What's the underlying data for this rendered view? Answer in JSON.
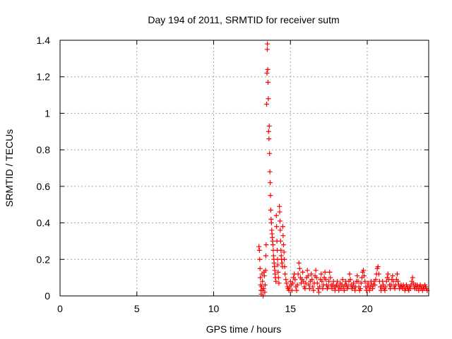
{
  "chart_data": {
    "type": "scatter",
    "title": "Day 194 of 2011, SRMTID for receiver sutm",
    "xlabel": "GPS time / hours",
    "ylabel": "SRMTID / TECUs",
    "xlim": [
      0,
      24
    ],
    "ylim": [
      0,
      1.4
    ],
    "x_ticks": [
      0,
      5,
      10,
      15,
      20
    ],
    "x_tick_labels": [
      "0",
      "5",
      "10",
      "15",
      "20"
    ],
    "y_ticks": [
      0,
      0.2,
      0.4,
      0.6,
      0.8,
      1.0,
      1.2,
      1.4
    ],
    "y_tick_labels": [
      "0",
      "0.2",
      "0.4",
      "0.6",
      "0.8",
      "1",
      "1.2",
      "1.4"
    ],
    "grid": true,
    "marker": "+",
    "series": [
      {
        "name": "SRMTID",
        "color": "#ff0000",
        "points": [
          [
            12.95,
            0.27
          ],
          [
            12.98,
            0.25
          ],
          [
            13.0,
            0.2
          ],
          [
            13.02,
            0.15
          ],
          [
            13.04,
            0.1
          ],
          [
            13.06,
            0.06
          ],
          [
            13.08,
            0.03
          ],
          [
            13.1,
            0.01
          ],
          [
            13.12,
            0.05
          ],
          [
            13.15,
            0.12
          ],
          [
            13.18,
            0.08
          ],
          [
            13.2,
            0.03
          ],
          [
            13.22,
            0.0
          ],
          [
            13.25,
            0.04
          ],
          [
            13.28,
            0.13
          ],
          [
            13.3,
            0.11
          ],
          [
            13.33,
            0.02
          ],
          [
            13.35,
            0.06
          ],
          [
            13.38,
            0.14
          ],
          [
            13.4,
            0.22
          ],
          [
            13.42,
            0.28
          ],
          [
            13.45,
            1.05
          ],
          [
            13.47,
            1.22
          ],
          [
            13.49,
            1.35
          ],
          [
            13.5,
            1.38
          ],
          [
            13.52,
            1.24
          ],
          [
            13.54,
            1.17
          ],
          [
            13.56,
            1.08
          ],
          [
            13.58,
            0.9
          ],
          [
            13.6,
            0.86
          ],
          [
            13.62,
            0.93
          ],
          [
            13.64,
            0.78
          ],
          [
            13.66,
            0.68
          ],
          [
            13.68,
            0.62
          ],
          [
            13.7,
            0.55
          ],
          [
            13.72,
            0.47
          ],
          [
            13.74,
            0.42
          ],
          [
            13.76,
            0.4
          ],
          [
            13.78,
            0.36
          ],
          [
            13.8,
            0.34
          ],
          [
            13.82,
            0.32
          ],
          [
            13.84,
            0.3
          ],
          [
            13.86,
            0.28
          ],
          [
            13.88,
            0.25
          ],
          [
            13.9,
            0.22
          ],
          [
            13.92,
            0.2
          ],
          [
            13.94,
            0.18
          ],
          [
            13.96,
            0.16
          ],
          [
            13.98,
            0.14
          ],
          [
            14.0,
            0.12
          ],
          [
            14.02,
            0.1
          ],
          [
            14.05,
            0.08
          ],
          [
            14.08,
            0.44
          ],
          [
            14.1,
            0.38
          ],
          [
            14.12,
            0.3
          ],
          [
            14.14,
            0.25
          ],
          [
            14.16,
            0.2
          ],
          [
            14.18,
            0.17
          ],
          [
            14.2,
            0.13
          ],
          [
            14.22,
            0.1
          ],
          [
            14.25,
            0.07
          ],
          [
            14.28,
            0.49
          ],
          [
            14.3,
            0.46
          ],
          [
            14.32,
            0.41
          ],
          [
            14.34,
            0.36
          ],
          [
            14.36,
            0.3
          ],
          [
            14.38,
            0.25
          ],
          [
            14.4,
            0.22
          ],
          [
            14.42,
            0.2
          ],
          [
            14.45,
            0.18
          ],
          [
            14.48,
            0.16
          ],
          [
            14.5,
            0.38
          ],
          [
            14.52,
            0.33
          ],
          [
            14.55,
            0.28
          ],
          [
            14.58,
            0.24
          ],
          [
            14.6,
            0.2
          ],
          [
            14.62,
            0.16
          ],
          [
            14.65,
            0.12
          ],
          [
            14.7,
            0.09
          ],
          [
            14.75,
            0.07
          ],
          [
            14.8,
            0.05
          ],
          [
            14.85,
            0.04
          ],
          [
            14.9,
            0.03
          ],
          [
            14.95,
            0.05
          ],
          [
            15.0,
            0.08
          ],
          [
            15.05,
            0.06
          ],
          [
            15.1,
            0.03
          ],
          [
            15.15,
            0.07
          ],
          [
            15.2,
            0.1
          ],
          [
            15.25,
            0.12
          ],
          [
            15.3,
            0.09
          ],
          [
            15.35,
            0.05
          ],
          [
            15.4,
            0.03
          ],
          [
            15.45,
            0.06
          ],
          [
            15.5,
            0.12
          ],
          [
            15.55,
            0.18
          ],
          [
            15.6,
            0.15
          ],
          [
            15.65,
            0.1
          ],
          [
            15.7,
            0.07
          ],
          [
            15.75,
            0.09
          ],
          [
            15.8,
            0.13
          ],
          [
            15.85,
            0.08
          ],
          [
            15.9,
            0.05
          ],
          [
            15.95,
            0.04
          ],
          [
            16.0,
            0.07
          ],
          [
            16.05,
            0.1
          ],
          [
            16.1,
            0.14
          ],
          [
            16.15,
            0.11
          ],
          [
            16.2,
            0.06
          ],
          [
            16.25,
            0.04
          ],
          [
            16.3,
            0.08
          ],
          [
            16.35,
            0.12
          ],
          [
            16.4,
            0.09
          ],
          [
            16.45,
            0.05
          ],
          [
            16.5,
            0.03
          ],
          [
            16.55,
            0.07
          ],
          [
            16.6,
            0.11
          ],
          [
            16.65,
            0.14
          ],
          [
            16.7,
            0.1
          ],
          [
            16.75,
            0.07
          ],
          [
            16.8,
            0.04
          ],
          [
            16.85,
            0.02
          ],
          [
            16.9,
            0.05
          ],
          [
            16.95,
            0.09
          ],
          [
            17.0,
            0.12
          ],
          [
            17.05,
            0.08
          ],
          [
            17.1,
            0.04
          ],
          [
            17.15,
            0.06
          ],
          [
            17.2,
            0.1
          ],
          [
            17.25,
            0.13
          ],
          [
            17.3,
            0.09
          ],
          [
            17.35,
            0.06
          ],
          [
            17.4,
            0.04
          ],
          [
            17.45,
            0.05
          ],
          [
            17.5,
            0.08
          ],
          [
            17.55,
            0.13
          ],
          [
            17.6,
            0.1
          ],
          [
            17.65,
            0.06
          ],
          [
            17.7,
            0.04
          ],
          [
            17.75,
            0.06
          ],
          [
            17.8,
            0.08
          ],
          [
            17.85,
            0.05
          ],
          [
            17.9,
            0.03
          ],
          [
            17.95,
            0.05
          ],
          [
            18.0,
            0.06
          ],
          [
            18.05,
            0.08
          ],
          [
            18.1,
            0.05
          ],
          [
            18.15,
            0.03
          ],
          [
            18.2,
            0.05
          ],
          [
            18.25,
            0.07
          ],
          [
            18.3,
            0.04
          ],
          [
            18.35,
            0.06
          ],
          [
            18.4,
            0.09
          ],
          [
            18.45,
            0.05
          ],
          [
            18.5,
            0.03
          ],
          [
            18.55,
            0.06
          ],
          [
            18.6,
            0.08
          ],
          [
            18.65,
            0.06
          ],
          [
            18.7,
            0.04
          ],
          [
            18.75,
            0.05
          ],
          [
            18.8,
            0.08
          ],
          [
            18.85,
            0.12
          ],
          [
            18.9,
            0.09
          ],
          [
            18.95,
            0.06
          ],
          [
            19.0,
            0.04
          ],
          [
            19.05,
            0.05
          ],
          [
            19.1,
            0.07
          ],
          [
            19.15,
            0.05
          ],
          [
            19.2,
            0.03
          ],
          [
            19.25,
            0.05
          ],
          [
            19.3,
            0.08
          ],
          [
            19.35,
            0.11
          ],
          [
            19.4,
            0.08
          ],
          [
            19.45,
            0.05
          ],
          [
            19.5,
            0.03
          ],
          [
            19.55,
            0.04
          ],
          [
            19.6,
            0.07
          ],
          [
            19.65,
            0.1
          ],
          [
            19.7,
            0.13
          ],
          [
            19.75,
            0.14
          ],
          [
            19.8,
            0.11
          ],
          [
            19.85,
            0.08
          ],
          [
            19.9,
            0.05
          ],
          [
            19.95,
            0.03
          ],
          [
            20.0,
            0.05
          ],
          [
            20.05,
            0.07
          ],
          [
            20.1,
            0.05
          ],
          [
            20.15,
            0.03
          ],
          [
            20.2,
            0.05
          ],
          [
            20.25,
            0.08
          ],
          [
            20.3,
            0.06
          ],
          [
            20.35,
            0.04
          ],
          [
            20.4,
            0.06
          ],
          [
            20.45,
            0.08
          ],
          [
            20.5,
            0.06
          ],
          [
            20.55,
            0.09
          ],
          [
            20.6,
            0.12
          ],
          [
            20.65,
            0.15
          ],
          [
            20.7,
            0.16
          ],
          [
            20.75,
            0.12
          ],
          [
            20.8,
            0.08
          ],
          [
            20.85,
            0.05
          ],
          [
            20.9,
            0.03
          ],
          [
            20.95,
            0.05
          ],
          [
            21.0,
            0.08
          ],
          [
            21.05,
            0.06
          ],
          [
            21.1,
            0.04
          ],
          [
            21.15,
            0.03
          ],
          [
            21.2,
            0.05
          ],
          [
            21.25,
            0.08
          ],
          [
            21.3,
            0.1
          ],
          [
            21.35,
            0.12
          ],
          [
            21.4,
            0.09
          ],
          [
            21.45,
            0.06
          ],
          [
            21.5,
            0.04
          ],
          [
            21.55,
            0.06
          ],
          [
            21.6,
            0.09
          ],
          [
            21.65,
            0.11
          ],
          [
            21.7,
            0.08
          ],
          [
            21.75,
            0.05
          ],
          [
            21.8,
            0.04
          ],
          [
            21.85,
            0.06
          ],
          [
            21.9,
            0.09
          ],
          [
            21.95,
            0.12
          ],
          [
            22.0,
            0.08
          ],
          [
            22.05,
            0.06
          ],
          [
            22.1,
            0.04
          ],
          [
            22.15,
            0.05
          ],
          [
            22.2,
            0.06
          ],
          [
            22.25,
            0.05
          ],
          [
            22.3,
            0.04
          ],
          [
            22.35,
            0.06
          ],
          [
            22.4,
            0.05
          ],
          [
            22.45,
            0.03
          ],
          [
            22.5,
            0.04
          ],
          [
            22.55,
            0.06
          ],
          [
            22.6,
            0.05
          ],
          [
            22.65,
            0.04
          ],
          [
            22.7,
            0.03
          ],
          [
            22.75,
            0.05
          ],
          [
            22.8,
            0.04
          ],
          [
            22.85,
            0.06
          ],
          [
            22.9,
            0.08
          ],
          [
            22.95,
            0.1
          ],
          [
            23.0,
            0.07
          ],
          [
            23.05,
            0.05
          ],
          [
            23.1,
            0.04
          ],
          [
            23.15,
            0.06
          ],
          [
            23.2,
            0.04
          ],
          [
            23.25,
            0.06
          ],
          [
            23.3,
            0.05
          ],
          [
            23.35,
            0.03
          ],
          [
            23.4,
            0.05
          ],
          [
            23.45,
            0.06
          ],
          [
            23.5,
            0.04
          ],
          [
            23.55,
            0.05
          ],
          [
            23.6,
            0.03
          ],
          [
            23.65,
            0.05
          ],
          [
            23.7,
            0.04
          ],
          [
            23.75,
            0.06
          ],
          [
            23.8,
            0.05
          ],
          [
            23.85,
            0.04
          ],
          [
            23.9,
            0.03
          ]
        ]
      }
    ]
  }
}
